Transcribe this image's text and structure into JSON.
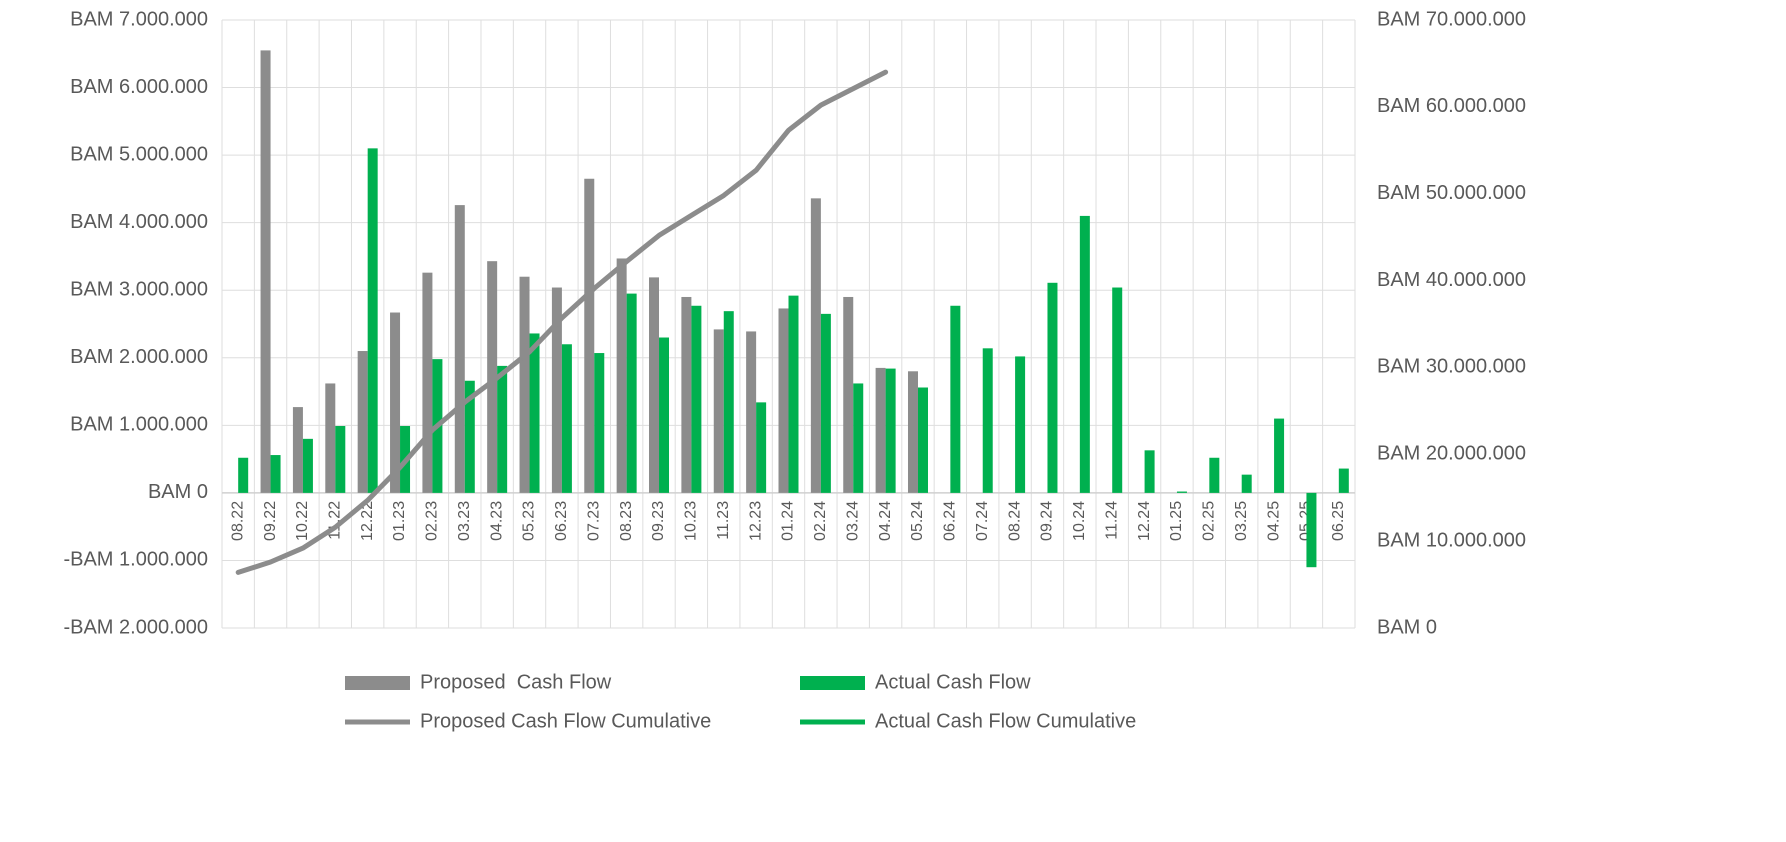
{
  "chart_data": {
    "type": "bar_line",
    "categories": [
      "08.22",
      "09.22",
      "10.22",
      "11.22",
      "12.22",
      "01.23",
      "02.23",
      "03.23",
      "04.23",
      "05.23",
      "06.23",
      "07.23",
      "08.23",
      "09.23",
      "10.23",
      "11.23",
      "12.23",
      "01.24",
      "02.24",
      "03.24",
      "04.24",
      "05.24",
      "06.24",
      "07.24",
      "08.24",
      "09.24",
      "10.24",
      "11.24",
      "12.24",
      "01.25",
      "02.25",
      "03.25",
      "04.25",
      "05.25",
      "06.25"
    ],
    "series": [
      {
        "name": "Proposed  Cash Flow",
        "kind": "bar",
        "color": "#8c8c8c",
        "values": [
          null,
          6550000,
          1270000,
          1620000,
          2100000,
          2670000,
          3260000,
          4260000,
          3430000,
          3200000,
          3040000,
          4650000,
          3470000,
          3190000,
          2900000,
          2420000,
          2390000,
          2730000,
          4360000,
          2900000,
          1850000,
          1800000,
          null,
          null,
          null,
          null,
          null,
          null,
          null,
          null,
          null,
          null,
          null,
          null,
          null
        ]
      },
      {
        "name": "Actual Cash Flow",
        "kind": "bar",
        "color": "#00b04f",
        "values": [
          520000,
          560000,
          800000,
          990000,
          5100000,
          990000,
          1980000,
          1660000,
          1880000,
          2360000,
          2200000,
          2070000,
          2950000,
          2300000,
          2770000,
          2690000,
          1340000,
          2920000,
          2650000,
          1620000,
          1840000,
          1560000,
          2770000,
          2140000,
          2020000,
          3110000,
          4100000,
          3040000,
          630000,
          20000,
          520000,
          270000,
          1100000,
          -1100000,
          360000
        ]
      },
      {
        "name": "Proposed Cash Flow Cumulative",
        "kind": "line",
        "axis": "y2",
        "color": "#8c8c8c",
        "values": [
          6400000,
          7600000,
          9200000,
          11600000,
          14700000,
          18500000,
          22800000,
          26000000,
          28800000,
          31800000,
          35700000,
          39100000,
          42200000,
          45200000,
          47500000,
          49800000,
          52700000,
          57300000,
          60200000,
          62100000,
          64000000,
          null,
          null,
          null,
          null,
          null,
          null,
          null,
          null,
          null,
          null,
          null,
          null,
          null,
          null
        ]
      },
      {
        "name": "Actual Cash Flow Cumulative",
        "kind": "line",
        "axis": "y2",
        "color": "#00b04f",
        "values": [
          null,
          null,
          null,
          null,
          null,
          null,
          null,
          null,
          null,
          null,
          null,
          null,
          null,
          null,
          null,
          null,
          null,
          null,
          null,
          null,
          null,
          null,
          null,
          null,
          null,
          null,
          null,
          null,
          null,
          null,
          null,
          null,
          null,
          null,
          null
        ]
      }
    ],
    "ylim": [
      -2000000,
      7000000
    ],
    "yticks": [
      {
        "value": -2000000,
        "label": "-BAM 2.000.000"
      },
      {
        "value": -1000000,
        "label": "-BAM 1.000.000"
      },
      {
        "value": 0,
        "label": "BAM 0"
      },
      {
        "value": 1000000,
        "label": "BAM 1.000.000"
      },
      {
        "value": 2000000,
        "label": "BAM 2.000.000"
      },
      {
        "value": 3000000,
        "label": "BAM 3.000.000"
      },
      {
        "value": 4000000,
        "label": "BAM 4.000.000"
      },
      {
        "value": 5000000,
        "label": "BAM 5.000.000"
      },
      {
        "value": 6000000,
        "label": "BAM 6.000.000"
      },
      {
        "value": 7000000,
        "label": "BAM 7.000.000"
      }
    ],
    "y2lim": [
      0,
      70000000
    ],
    "y2ticks": [
      {
        "value": 0,
        "label": "BAM 0"
      },
      {
        "value": 10000000,
        "label": "BAM 10.000.000"
      },
      {
        "value": 20000000,
        "label": "BAM 20.000.000"
      },
      {
        "value": 30000000,
        "label": "BAM 30.000.000"
      },
      {
        "value": 40000000,
        "label": "BAM 40.000.000"
      },
      {
        "value": 50000000,
        "label": "BAM 50.000.000"
      },
      {
        "value": 60000000,
        "label": "BAM 60.000.000"
      },
      {
        "value": 70000000,
        "label": "BAM 70.000.000"
      }
    ],
    "grid": true,
    "legend": "bottom"
  }
}
